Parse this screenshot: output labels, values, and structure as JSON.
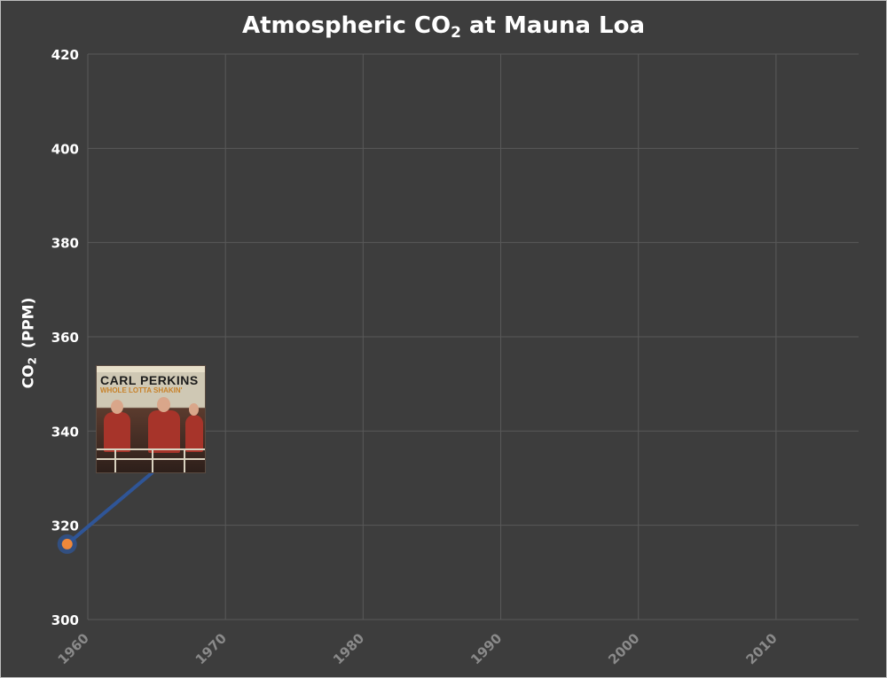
{
  "chart_data": {
    "type": "line",
    "title_main": "Atmospheric CO",
    "title_sub": "2",
    "title_rest": " at Mauna Loa",
    "ylabel_main": "CO",
    "ylabel_sub": "2",
    "ylabel_rest": "(PPM)",
    "xlabel": "",
    "xlim": [
      1960,
      2016
    ],
    "ylim": [
      300,
      420
    ],
    "x_ticks": [
      "1960",
      "1970",
      "1980",
      "1990",
      "2000",
      "2010"
    ],
    "y_ticks": [
      "420",
      "400",
      "380",
      "360",
      "340",
      "320",
      "300"
    ],
    "grid": true,
    "series": [
      {
        "x": [
          1958.5
        ],
        "y": [
          316
        ],
        "color": "#f0883a"
      }
    ],
    "callout": {
      "x": 1958.5,
      "y": 316,
      "leader_color": "#2f5597",
      "image": {
        "artist": "CARL PERKINS",
        "album": "WHOLE LOTTA SHAKIN'"
      }
    }
  },
  "colors": {
    "background": "#3d3d3d",
    "gridline": "#595959",
    "text": "#ffffff",
    "tick_x": "#8a8a8a"
  }
}
